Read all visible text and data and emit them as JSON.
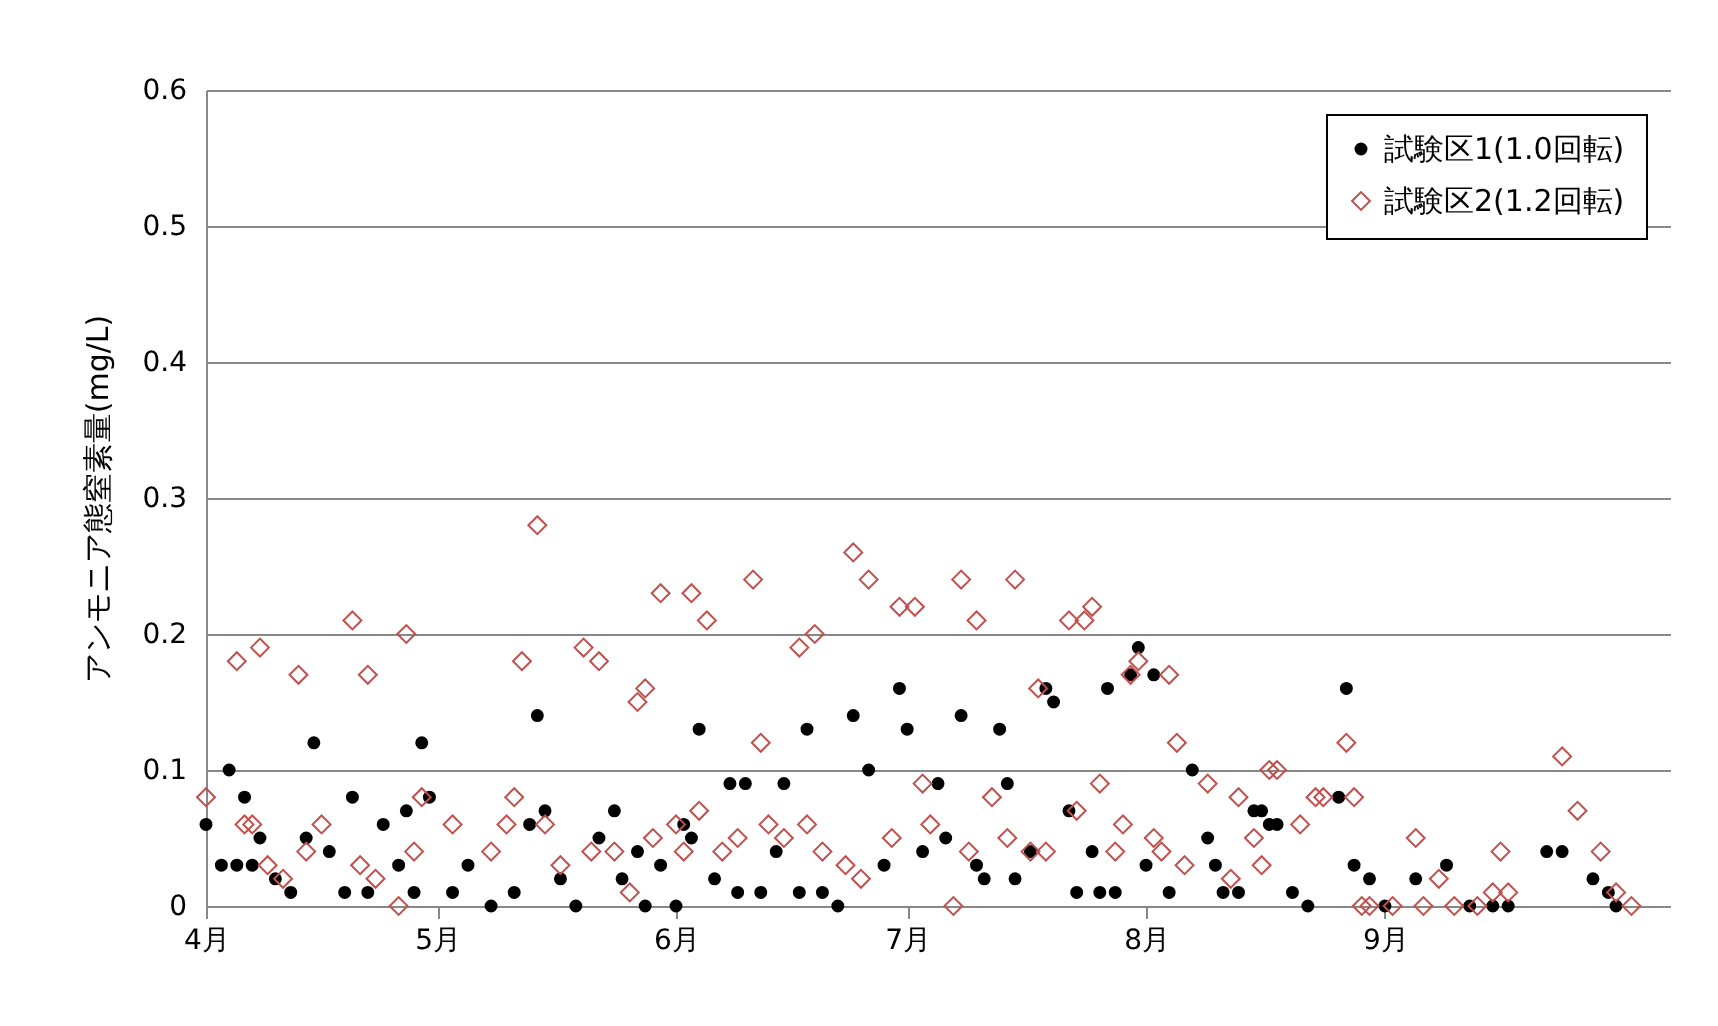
{
  "chart_data": {
    "type": "scatter",
    "ylabel": "アンモニア態窒素量(mg/L)",
    "xlim": [
      "--04-01",
      "--10-08"
    ],
    "xticks": [
      {
        "value": "--04-01",
        "label": "4月"
      },
      {
        "value": "--05-01",
        "label": "5月"
      },
      {
        "value": "--06-01",
        "label": "6月"
      },
      {
        "value": "--07-01",
        "label": "7月"
      },
      {
        "value": "--08-01",
        "label": "8月"
      },
      {
        "value": "--09-01",
        "label": "9月"
      }
    ],
    "ylim": [
      0,
      0.6
    ],
    "yticks": [
      0,
      0.1,
      0.2,
      0.3,
      0.4,
      0.5,
      0.6
    ],
    "grid": "y",
    "legend": "top right",
    "series": [
      {
        "name": "試験区1(1.0回転)",
        "color": "#000000",
        "marker": "circle",
        "x": [
          "--04-01",
          "--04-03",
          "--04-04",
          "--04-05",
          "--04-06",
          "--04-07",
          "--04-08",
          "--04-10",
          "--04-12",
          "--04-14",
          "--04-15",
          "--04-17",
          "--04-19",
          "--04-20",
          "--04-22",
          "--04-24",
          "--04-26",
          "--04-27",
          "--04-28",
          "--04-29",
          "--04-30",
          "--05-03",
          "--05-05",
          "--05-08",
          "--05-11",
          "--05-13",
          "--05-14",
          "--05-15",
          "--05-17",
          "--05-19",
          "--05-22",
          "--05-24",
          "--05-25",
          "--05-27",
          "--05-28",
          "--05-30",
          "--06-01",
          "--06-02",
          "--06-03",
          "--06-04",
          "--06-06",
          "--06-08",
          "--06-09",
          "--06-10",
          "--06-12",
          "--06-14",
          "--06-15",
          "--06-17",
          "--06-18",
          "--06-20",
          "--06-22",
          "--06-24",
          "--06-26",
          "--06-28",
          "--06-30",
          "--07-01",
          "--07-03",
          "--07-05",
          "--07-06",
          "--07-08",
          "--07-10",
          "--07-11",
          "--07-13",
          "--07-14",
          "--07-15",
          "--07-17",
          "--07-19",
          "--07-20",
          "--07-22",
          "--07-23",
          "--07-25",
          "--07-26",
          "--07-27",
          "--07-28",
          "--07-30",
          "--07-31",
          "--08-01",
          "--08-02",
          "--08-04",
          "--08-07",
          "--08-09",
          "--08-10",
          "--08-11",
          "--08-13",
          "--08-15",
          "--08-16",
          "--08-17",
          "--08-18",
          "--08-20",
          "--08-22",
          "--08-26",
          "--08-27",
          "--08-28",
          "--08-30",
          "--09-01",
          "--09-05",
          "--09-09",
          "--09-12",
          "--09-15",
          "--09-17",
          "--09-22",
          "--09-24",
          "--09-28",
          "--09-30",
          "--10-01"
        ],
        "values": [
          0.06,
          0.03,
          0.1,
          0.03,
          0.08,
          0.03,
          0.05,
          0.02,
          0.01,
          0.05,
          0.12,
          0.04,
          0.01,
          0.08,
          0.01,
          0.06,
          0.03,
          0.07,
          0.01,
          0.12,
          0.08,
          0.01,
          0.03,
          0.0,
          0.01,
          0.06,
          0.14,
          0.07,
          0.02,
          0.0,
          0.05,
          0.07,
          0.02,
          0.04,
          0.0,
          0.03,
          0.0,
          0.06,
          0.05,
          0.13,
          0.02,
          0.09,
          0.01,
          0.09,
          0.01,
          0.04,
          0.09,
          0.01,
          0.13,
          0.01,
          0.0,
          0.14,
          0.1,
          0.03,
          0.16,
          0.13,
          0.04,
          0.09,
          0.05,
          0.14,
          0.03,
          0.02,
          0.13,
          0.09,
          0.02,
          0.04,
          0.16,
          0.15,
          0.07,
          0.01,
          0.04,
          0.01,
          0.16,
          0.01,
          0.17,
          0.19,
          0.03,
          0.17,
          0.01,
          0.1,
          0.05,
          0.03,
          0.01,
          0.01,
          0.07,
          0.07,
          0.06,
          0.06,
          0.01,
          0.0,
          0.08,
          0.16,
          0.03,
          0.02,
          0.0,
          0.02,
          0.03,
          0.0,
          0.0,
          0.0,
          0.04,
          0.04,
          0.02,
          0.01,
          0.0
        ]
      },
      {
        "name": "試験区2(1.2回転)",
        "color": "#c0504d",
        "marker": "diamond",
        "x": [
          "--04-01",
          "--04-05",
          "--04-06",
          "--04-07",
          "--04-08",
          "--04-09",
          "--04-11",
          "--04-13",
          "--04-14",
          "--04-16",
          "--04-20",
          "--04-21",
          "--04-22",
          "--04-23",
          "--04-26",
          "--04-27",
          "--04-28",
          "--04-29",
          "--05-03",
          "--05-08",
          "--05-10",
          "--05-11",
          "--05-12",
          "--05-14",
          "--05-15",
          "--05-17",
          "--05-20",
          "--05-21",
          "--05-22",
          "--05-24",
          "--05-26",
          "--05-27",
          "--05-28",
          "--05-29",
          "--05-30",
          "--06-01",
          "--06-02",
          "--06-03",
          "--06-04",
          "--06-05",
          "--06-07",
          "--06-09",
          "--06-11",
          "--06-12",
          "--06-13",
          "--06-15",
          "--06-17",
          "--06-18",
          "--06-19",
          "--06-20",
          "--06-23",
          "--06-24",
          "--06-25",
          "--06-26",
          "--06-29",
          "--06-30",
          "--07-02",
          "--07-03",
          "--07-04",
          "--07-07",
          "--07-08",
          "--07-09",
          "--07-10",
          "--07-12",
          "--07-14",
          "--07-15",
          "--07-17",
          "--07-18",
          "--07-19",
          "--07-22",
          "--07-23",
          "--07-24",
          "--07-25",
          "--07-26",
          "--07-28",
          "--07-29",
          "--07-30",
          "--07-31",
          "--08-02",
          "--08-03",
          "--08-04",
          "--08-05",
          "--08-06",
          "--08-09",
          "--08-12",
          "--08-13",
          "--08-15",
          "--08-16",
          "--08-17",
          "--08-18",
          "--08-21",
          "--08-23",
          "--08-24",
          "--08-27",
          "--08-28",
          "--08-29",
          "--08-30",
          "--09-02",
          "--09-05",
          "--09-06",
          "--09-08",
          "--09-10",
          "--09-13",
          "--09-15",
          "--09-16",
          "--09-17",
          "--09-24",
          "--09-26",
          "--09-29",
          "--10-01",
          "--10-03"
        ],
        "values": [
          0.08,
          0.18,
          0.06,
          0.06,
          0.19,
          0.03,
          0.02,
          0.17,
          0.04,
          0.06,
          0.21,
          0.03,
          0.17,
          0.02,
          0.0,
          0.2,
          0.04,
          0.08,
          0.06,
          0.04,
          0.06,
          0.08,
          0.18,
          0.28,
          0.06,
          0.03,
          0.19,
          0.04,
          0.18,
          0.04,
          0.01,
          0.15,
          0.16,
          0.05,
          0.23,
          0.06,
          0.04,
          0.23,
          0.07,
          0.21,
          0.04,
          0.05,
          0.24,
          0.12,
          0.06,
          0.05,
          0.19,
          0.06,
          0.2,
          0.04,
          0.03,
          0.26,
          0.02,
          0.24,
          0.05,
          0.22,
          0.22,
          0.09,
          0.06,
          0.0,
          0.24,
          0.04,
          0.21,
          0.08,
          0.05,
          0.24,
          0.04,
          0.16,
          0.04,
          0.21,
          0.07,
          0.21,
          0.22,
          0.09,
          0.04,
          0.06,
          0.17,
          0.18,
          0.05,
          0.04,
          0.17,
          0.12,
          0.03,
          0.09,
          0.02,
          0.08,
          0.05,
          0.03,
          0.1,
          0.1,
          0.06,
          0.08,
          0.08,
          0.12,
          0.08,
          0.0,
          0.0,
          0.0,
          0.05,
          0.0,
          0.02,
          0.0,
          0.0,
          0.01,
          0.04,
          0.01,
          0.11,
          0.07,
          0.04,
          0.01,
          0.0
        ]
      }
    ]
  }
}
